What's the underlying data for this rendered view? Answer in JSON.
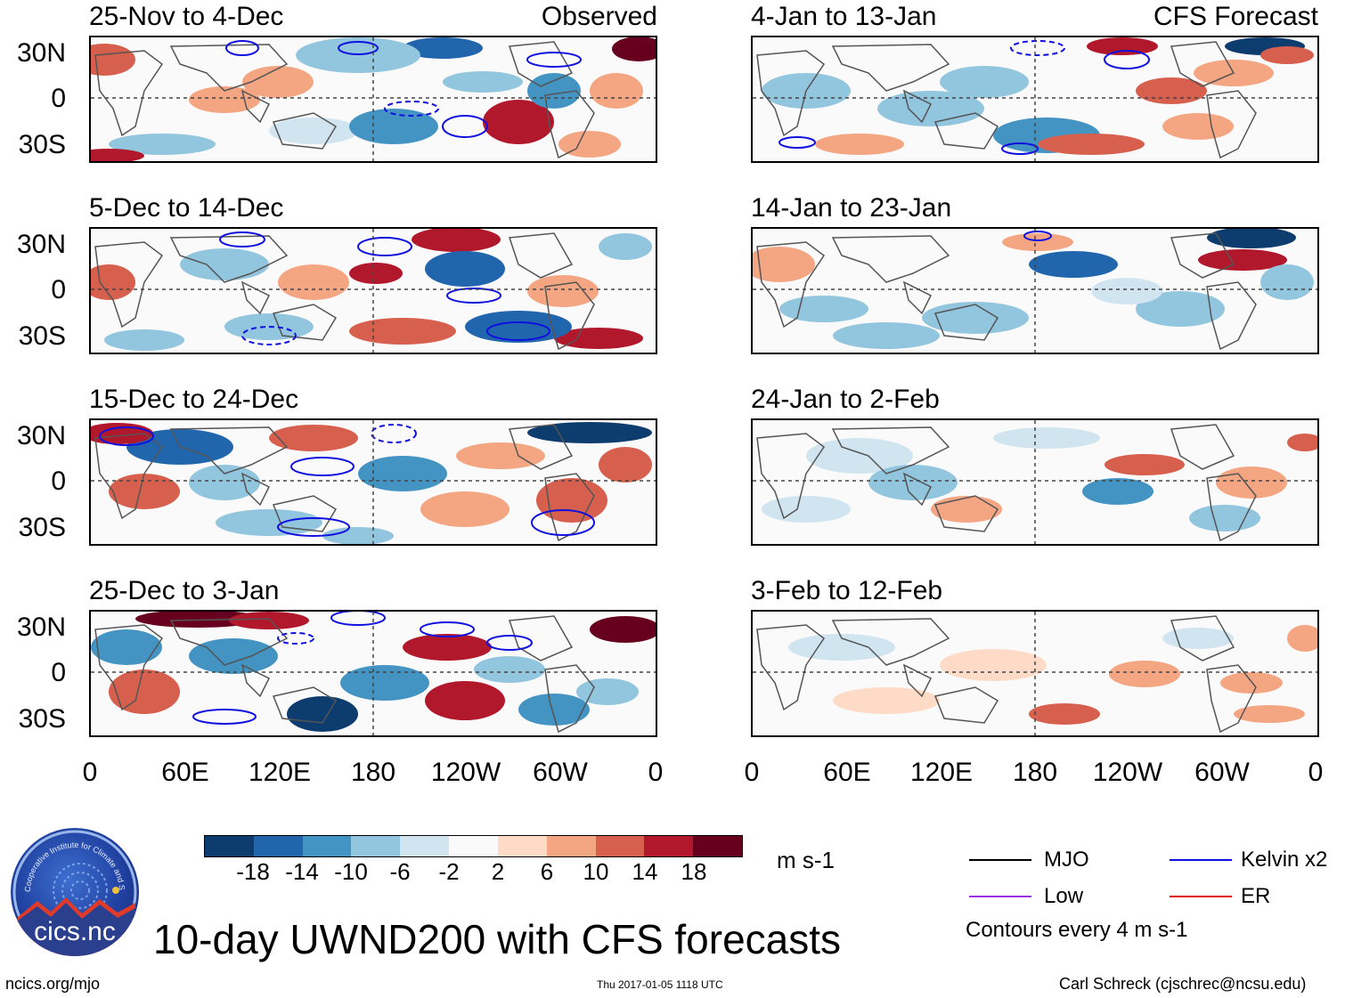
{
  "colors": {
    "neg3": "#0d3c6e",
    "neg2": "#2166ac",
    "neg1": "#4393c3",
    "neg05": "#92c5de",
    "neg0": "#d1e5f0",
    "zero": "#fafafa",
    "pos0": "#fddbc7",
    "pos05": "#f4a582",
    "pos1": "#d6604d",
    "pos2": "#b2182b",
    "pos3": "#67001f",
    "mjo": "#000000",
    "kelvin": "#1010e0",
    "low": "#9a30e0",
    "er": "#e01010",
    "coast": "#555555"
  },
  "observed_label": "Observed",
  "forecast_label": "CFS Forecast",
  "panels": {
    "left": [
      {
        "title": "25-Nov to 4-Dec"
      },
      {
        "title": "5-Dec to 14-Dec"
      },
      {
        "title": "15-Dec to 24-Dec"
      },
      {
        "title": "25-Dec to 3-Jan"
      }
    ],
    "right": [
      {
        "title": "4-Jan to 13-Jan"
      },
      {
        "title": "14-Jan to 23-Jan"
      },
      {
        "title": "24-Jan to 2-Feb"
      },
      {
        "title": "3-Feb to 12-Feb"
      }
    ]
  },
  "lat_labels": [
    "30N",
    "0",
    "30S"
  ],
  "lon_labels": [
    "0",
    "60E",
    "120E",
    "180",
    "120W",
    "60W",
    "0"
  ],
  "colorbar": {
    "ticks": [
      "-18",
      "-14",
      "-10",
      "-6",
      "-2",
      "2",
      "6",
      "10",
      "14",
      "18"
    ],
    "units": "m s-1"
  },
  "legend": {
    "mjo": "MJO",
    "kelvin": "Kelvin x2",
    "low": "Low",
    "er": "ER",
    "contours_note": "Contours every 4 m s-1"
  },
  "main_title": "10-day UWND200 with CFS forecasts",
  "footer": {
    "website": "ncics.org/mjo",
    "timestamp": "Thu 2017-01-05 1118 UTC",
    "author": "Carl Schreck (cjschrec@ncsu.edu)"
  },
  "logo": {
    "text": "cics.nc",
    "ring_text": "Cooperative Institute for Climate and Satellites"
  }
}
